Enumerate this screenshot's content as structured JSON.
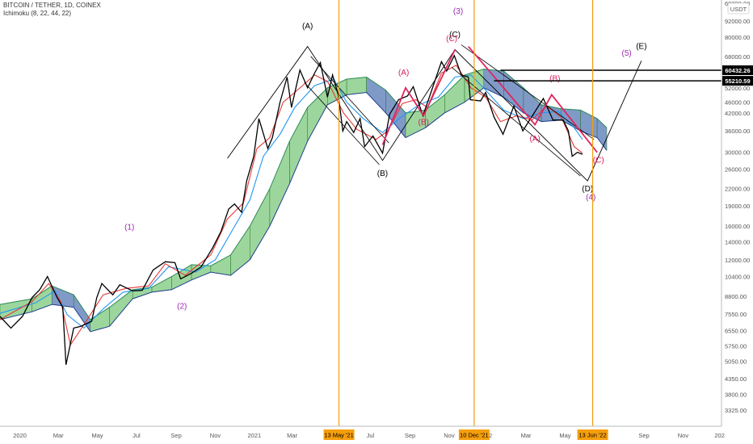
{
  "header": {
    "symbol_title": "BITCOIN / TETHER, 1D, COINEX",
    "indicator": "Ichimoku (8, 22, 44, 22)",
    "currency_tag": "USDT",
    "top_cut_label": "60000.00"
  },
  "chart_data": {
    "type": "line",
    "scale": "log",
    "ylim": [
      2900,
      110000
    ],
    "xlim": [
      "2019-12-01",
      "2022-12-31"
    ],
    "y_ticks": [
      "92000.00",
      "80000.00",
      "68000.00",
      "60000.00",
      "52000.00",
      "46000.00",
      "42000.00",
      "36000.00",
      "30000.00",
      "26000.00",
      "22000.00",
      "19000.00",
      "16000.00",
      "14000.00",
      "12000.00",
      "10400.00",
      "8800.00",
      "7550.00",
      "6550.00",
      "5750.00",
      "5050.00",
      "4350.00",
      "3800.00",
      "3325.00"
    ],
    "y_tick_values": [
      92000,
      80000,
      68000,
      60000,
      52000,
      46000,
      42000,
      36000,
      30000,
      26000,
      22000,
      19000,
      16000,
      14000,
      12000,
      10400,
      8800,
      7550,
      6550,
      5750,
      5050,
      4350,
      3800,
      3325
    ],
    "x_ticks": [
      {
        "label": "2020",
        "date": "2020-01-01"
      },
      {
        "label": "Mar",
        "date": "2020-03-01"
      },
      {
        "label": "May",
        "date": "2020-05-01"
      },
      {
        "label": "Jul",
        "date": "2020-07-01"
      },
      {
        "label": "Sep",
        "date": "2020-09-01"
      },
      {
        "label": "Nov",
        "date": "2020-11-01"
      },
      {
        "label": "2021",
        "date": "2021-01-01"
      },
      {
        "label": "Mar",
        "date": "2021-03-01"
      },
      {
        "label": "Jul",
        "date": "2021-07-01"
      },
      {
        "label": "Sep",
        "date": "2021-09-01"
      },
      {
        "label": "Nov",
        "date": "2021-11-01"
      },
      {
        "label": "'22",
        "date": "2022-01-01"
      },
      {
        "label": "Mar",
        "date": "2022-03-01"
      },
      {
        "label": "May",
        "date": "2022-05-01"
      },
      {
        "label": "Sep",
        "date": "2022-09-01"
      },
      {
        "label": "Nov",
        "date": "2022-11-01"
      },
      {
        "label": "202",
        "date": "2022-12-28"
      }
    ],
    "price_tags": [
      {
        "label": "60432.26",
        "value": 60432.26
      },
      {
        "label": "55210.59",
        "value": 55210.59
      }
    ],
    "vertical_markers": [
      {
        "label": "13 May '21",
        "date": "2021-05-13"
      },
      {
        "label": "10 Dec '21",
        "date": "2021-12-10"
      },
      {
        "label": "13 Jun '22",
        "date": "2022-06-13"
      }
    ],
    "price_series": [
      [
        "2019-12-01",
        7400
      ],
      [
        "2019-12-18",
        6700
      ],
      [
        "2020-01-05",
        7400
      ],
      [
        "2020-01-20",
        8700
      ],
      [
        "2020-02-01",
        9300
      ],
      [
        "2020-02-13",
        10400
      ],
      [
        "2020-02-28",
        8700
      ],
      [
        "2020-03-08",
        8000
      ],
      [
        "2020-03-13",
        4900
      ],
      [
        "2020-03-16",
        5300
      ],
      [
        "2020-03-25",
        6700
      ],
      [
        "2020-04-05",
        6800
      ],
      [
        "2020-04-22",
        7100
      ],
      [
        "2020-04-30",
        8700
      ],
      [
        "2020-05-08",
        9800
      ],
      [
        "2020-05-25",
        8900
      ],
      [
        "2020-06-05",
        9700
      ],
      [
        "2020-06-25",
        9200
      ],
      [
        "2020-07-10",
        9250
      ],
      [
        "2020-07-27",
        11000
      ],
      [
        "2020-08-15",
        11800
      ],
      [
        "2020-08-30",
        11700
      ],
      [
        "2020-09-08",
        10200
      ],
      [
        "2020-09-25",
        10700
      ],
      [
        "2020-10-10",
        11300
      ],
      [
        "2020-10-28",
        13300
      ],
      [
        "2020-11-10",
        15300
      ],
      [
        "2020-11-22",
        18500
      ],
      [
        "2020-12-01",
        19300
      ],
      [
        "2020-12-12",
        18000
      ],
      [
        "2020-12-20",
        23500
      ],
      [
        "2020-12-31",
        29000
      ],
      [
        "2021-01-08",
        40000
      ],
      [
        "2021-01-22",
        31000
      ],
      [
        "2021-01-29",
        34000
      ],
      [
        "2021-02-10",
        46000
      ],
      [
        "2021-02-21",
        57000
      ],
      [
        "2021-02-28",
        44000
      ],
      [
        "2021-03-13",
        60500
      ],
      [
        "2021-03-25",
        52000
      ],
      [
        "2021-04-05",
        59000
      ],
      [
        "2021-04-14",
        64500
      ],
      [
        "2021-04-25",
        48000
      ],
      [
        "2021-05-03",
        58000
      ],
      [
        "2021-05-12",
        49000
      ],
      [
        "2021-05-19",
        36000
      ],
      [
        "2021-05-25",
        39000
      ],
      [
        "2021-06-05",
        35500
      ],
      [
        "2021-06-15",
        40000
      ],
      [
        "2021-06-22",
        31500
      ],
      [
        "2021-07-05",
        34500
      ],
      [
        "2021-07-20",
        29800
      ],
      [
        "2021-07-31",
        41500
      ],
      [
        "2021-08-14",
        47000
      ],
      [
        "2021-08-28",
        48500
      ],
      [
        "2021-09-06",
        52500
      ],
      [
        "2021-09-21",
        41000
      ],
      [
        "2021-10-01",
        48000
      ],
      [
        "2021-10-20",
        65000
      ],
      [
        "2021-10-28",
        60000
      ],
      [
        "2021-11-09",
        68500
      ],
      [
        "2021-11-20",
        58000
      ],
      [
        "2021-12-01",
        57000
      ],
      [
        "2021-12-04",
        47000
      ],
      [
        "2021-12-20",
        46500
      ],
      [
        "2021-12-28",
        50000
      ],
      [
        "2022-01-10",
        40500
      ],
      [
        "2022-01-24",
        35000
      ],
      [
        "2022-02-10",
        44500
      ],
      [
        "2022-02-24",
        36000
      ],
      [
        "2022-03-05",
        39000
      ],
      [
        "2022-03-28",
        47500
      ],
      [
        "2022-04-12",
        39500
      ],
      [
        "2022-04-28",
        39500
      ],
      [
        "2022-05-06",
        36000
      ],
      [
        "2022-05-12",
        29000
      ],
      [
        "2022-05-20",
        30000
      ],
      [
        "2022-05-28",
        29500
      ]
    ],
    "tenkan_series": [
      [
        "2019-12-01",
        7200
      ],
      [
        "2020-01-20",
        8400
      ],
      [
        "2020-02-15",
        9800
      ],
      [
        "2020-03-05",
        8400
      ],
      [
        "2020-03-20",
        5800
      ],
      [
        "2020-04-10",
        6900
      ],
      [
        "2020-05-10",
        8900
      ],
      [
        "2020-06-15",
        9400
      ],
      [
        "2020-07-20",
        9600
      ],
      [
        "2020-08-15",
        11600
      ],
      [
        "2020-09-15",
        10500
      ],
      [
        "2020-10-25",
        12500
      ],
      [
        "2020-11-20",
        17000
      ],
      [
        "2020-12-15",
        19500
      ],
      [
        "2021-01-05",
        31000
      ],
      [
        "2021-01-25",
        34000
      ],
      [
        "2021-02-15",
        46000
      ],
      [
        "2021-03-05",
        50000
      ],
      [
        "2021-04-05",
        58000
      ],
      [
        "2021-04-25",
        55000
      ],
      [
        "2021-05-20",
        42000
      ],
      [
        "2021-06-10",
        36500
      ],
      [
        "2021-07-10",
        33500
      ],
      [
        "2021-07-28",
        36000
      ],
      [
        "2021-08-20",
        45500
      ],
      [
        "2021-09-10",
        47000
      ],
      [
        "2021-09-28",
        44000
      ],
      [
        "2021-10-20",
        59000
      ],
      [
        "2021-11-12",
        63000
      ],
      [
        "2021-12-05",
        52000
      ],
      [
        "2021-12-28",
        48000
      ],
      [
        "2022-01-20",
        39000
      ],
      [
        "2022-02-15",
        41000
      ],
      [
        "2022-03-10",
        39500
      ],
      [
        "2022-04-02",
        44500
      ],
      [
        "2022-04-25",
        40500
      ],
      [
        "2022-05-15",
        31500
      ],
      [
        "2022-05-28",
        29800
      ]
    ],
    "kijun_series": [
      [
        "2019-12-01",
        7600
      ],
      [
        "2020-01-25",
        8300
      ],
      [
        "2020-02-25",
        9200
      ],
      [
        "2020-03-15",
        7500
      ],
      [
        "2020-04-10",
        6700
      ],
      [
        "2020-05-10",
        7900
      ],
      [
        "2020-06-10",
        9100
      ],
      [
        "2020-07-20",
        9400
      ],
      [
        "2020-08-20",
        11300
      ],
      [
        "2020-10-01",
        10800
      ],
      [
        "2020-11-01",
        12000
      ],
      [
        "2020-11-28",
        15500
      ],
      [
        "2020-12-25",
        20000
      ],
      [
        "2021-01-15",
        29000
      ],
      [
        "2021-02-10",
        35000
      ],
      [
        "2021-03-05",
        44000
      ],
      [
        "2021-04-05",
        53000
      ],
      [
        "2021-05-05",
        56000
      ],
      [
        "2021-05-25",
        46000
      ],
      [
        "2021-06-20",
        40000
      ],
      [
        "2021-07-20",
        35500
      ],
      [
        "2021-08-15",
        40000
      ],
      [
        "2021-09-15",
        45000
      ],
      [
        "2021-10-15",
        48000
      ],
      [
        "2021-11-10",
        57000
      ],
      [
        "2021-12-05",
        58000
      ],
      [
        "2021-12-28",
        51000
      ],
      [
        "2022-01-25",
        43000
      ],
      [
        "2022-02-25",
        40000
      ],
      [
        "2022-03-25",
        42000
      ],
      [
        "2022-04-20",
        42500
      ],
      [
        "2022-05-15",
        37000
      ],
      [
        "2022-05-28",
        33500
      ]
    ],
    "cloud": [
      [
        "2019-12-01",
        7200,
        8200
      ],
      [
        "2020-01-20",
        7700,
        8600
      ],
      [
        "2020-02-20",
        8200,
        9600
      ],
      [
        "2020-03-25",
        8000,
        8900
      ],
      [
        "2020-04-20",
        6500,
        7200
      ],
      [
        "2020-05-20",
        6800,
        8000
      ],
      [
        "2020-06-25",
        8600,
        9300
      ],
      [
        "2020-07-25",
        9100,
        9500
      ],
      [
        "2020-08-25",
        9300,
        10400
      ],
      [
        "2020-09-25",
        10100,
        11500
      ],
      [
        "2020-10-25",
        10800,
        11400
      ],
      [
        "2020-11-25",
        10500,
        12500
      ],
      [
        "2020-12-25",
        12000,
        16000
      ],
      [
        "2021-01-25",
        16000,
        22000
      ],
      [
        "2021-02-25",
        23000,
        33000
      ],
      [
        "2021-03-25",
        33000,
        44000
      ],
      [
        "2021-04-25",
        45000,
        52000
      ],
      [
        "2021-05-25",
        49000,
        56000
      ],
      [
        "2021-06-25",
        50000,
        57000
      ],
      [
        "2021-07-25",
        42000,
        51000
      ],
      [
        "2021-08-25",
        34000,
        42000
      ],
      [
        "2021-09-25",
        37000,
        43000
      ],
      [
        "2021-10-25",
        42000,
        49000
      ],
      [
        "2021-11-25",
        46000,
        58000
      ],
      [
        "2021-12-25",
        52000,
        61000
      ],
      [
        "2022-01-25",
        48000,
        60000
      ],
      [
        "2022-02-25",
        42000,
        52000
      ],
      [
        "2022-03-25",
        39000,
        45000
      ],
      [
        "2022-04-25",
        39500,
        43500
      ],
      [
        "2022-05-25",
        36000,
        43000
      ],
      [
        "2022-06-20",
        34000,
        40000
      ],
      [
        "2022-07-05",
        30500,
        37000
      ]
    ],
    "black_waves": [
      {
        "points": [
          [
            "2020-11-20",
            28500
          ],
          [
            "2021-03-25",
            74000
          ],
          [
            "2021-07-20",
            28000
          ],
          [
            "2021-11-10",
            72000
          ],
          [
            "2022-06-05",
            23500
          ],
          [
            "2022-08-28",
            65500
          ]
        ],
        "labels": [
          [
            "(A)",
            "2021-03-25",
            86000
          ],
          [
            "(B)",
            "2021-07-20",
            24500
          ],
          [
            "(C)",
            "2021-11-10",
            80000
          ],
          [
            "(D)",
            "2022-06-05",
            21500
          ],
          [
            "(E)",
            "2022-08-28",
            72500
          ]
        ]
      }
    ],
    "black_channel": [
      [
        [
          "2021-03-20",
          54500
        ],
        [
          "2021-07-15",
          27000
        ]
      ],
      [
        [
          "2021-03-30",
          68000
        ],
        [
          "2021-07-30",
          32500
        ]
      ],
      [
        [
          "2021-11-20",
          75000
        ],
        [
          "2022-06-15",
          33500
        ]
      ],
      [
        [
          "2021-11-05",
          62000
        ],
        [
          "2022-05-25",
          24500
        ]
      ]
    ],
    "pink_waves": [
      {
        "points": [
          [
            "2021-07-20",
            32000
          ],
          [
            "2021-08-25",
            52000
          ],
          [
            "2021-09-22",
            41000
          ],
          [
            "2021-11-10",
            72000
          ]
        ],
        "labels": [
          [
            "(A)",
            "2021-08-22",
            58000
          ],
          [
            "(B)",
            "2021-09-22",
            38000
          ],
          [
            "(C)",
            "2021-11-05",
            77500
          ]
        ]
      },
      {
        "points": [
          [
            "2021-12-01",
            74000
          ],
          [
            "2022-03-15",
            38000
          ],
          [
            "2022-04-10",
            49000
          ],
          [
            "2022-06-20",
            30000
          ]
        ],
        "labels": [
          [
            "(A)",
            "2022-03-15",
            33000
          ],
          [
            "(B)",
            "2022-04-15",
            55000
          ],
          [
            "(C)",
            "2022-06-22",
            27500
          ]
        ]
      }
    ],
    "purple_labels": [
      [
        "(1)",
        "2020-06-20",
        15500
      ],
      [
        "(2)",
        "2020-09-10",
        7900
      ],
      [
        "(3)",
        "2021-11-15",
        98000
      ],
      [
        "(4)",
        "2022-06-10",
        20000
      ],
      [
        "(5)",
        "2022-08-05",
        68500
      ]
    ],
    "horizontal_lines": [
      {
        "value": 60432.26,
        "from": "2022-01-20"
      },
      {
        "value": 55210.59,
        "from": "2022-01-10"
      }
    ]
  }
}
